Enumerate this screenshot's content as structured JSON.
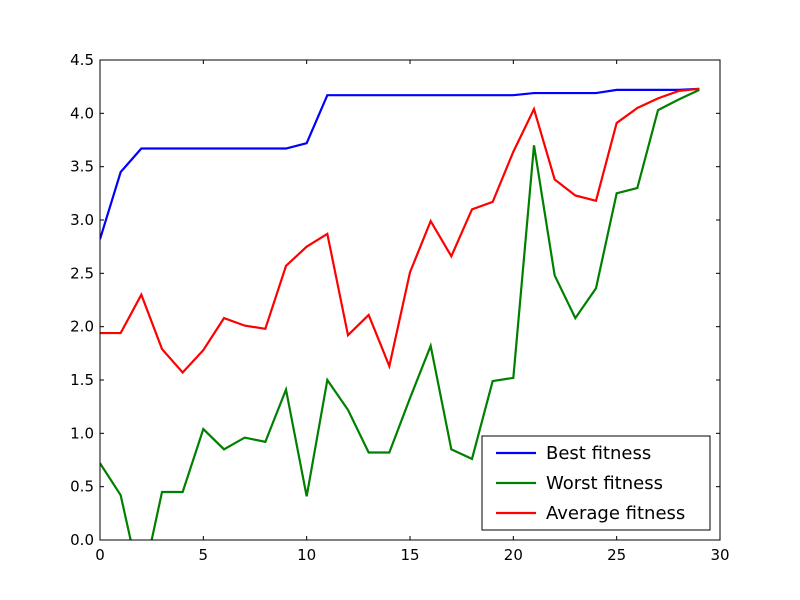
{
  "chart_data": {
    "type": "line",
    "title": "",
    "xlabel": "",
    "ylabel": "",
    "xlim": [
      0,
      30
    ],
    "ylim": [
      0,
      4.5
    ],
    "xticks": [
      0,
      5,
      10,
      15,
      20,
      25,
      30
    ],
    "xtick_labels": [
      "0",
      "5",
      "10",
      "15",
      "20",
      "25",
      "30"
    ],
    "yticks": [
      0,
      0.5,
      1,
      1.5,
      2,
      2.5,
      3,
      3.5,
      4,
      4.5
    ],
    "ytick_labels": [
      "0.0",
      "0.5",
      "1.0",
      "1.5",
      "2.0",
      "2.5",
      "3.0",
      "3.5",
      "4.0",
      "4.5"
    ],
    "grid": false,
    "legend_position": "lower-right",
    "x": [
      0,
      1,
      2,
      3,
      4,
      5,
      6,
      7,
      8,
      9,
      10,
      11,
      12,
      13,
      14,
      15,
      16,
      17,
      18,
      19,
      20,
      21,
      22,
      23,
      24,
      25,
      26,
      27,
      28,
      29
    ],
    "series": [
      {
        "name": "Best fitness",
        "color": "#0000ff",
        "values": [
          2.82,
          3.45,
          3.67,
          3.67,
          3.67,
          3.67,
          3.67,
          3.67,
          3.67,
          3.67,
          3.72,
          4.17,
          4.17,
          4.17,
          4.17,
          4.17,
          4.17,
          4.17,
          4.17,
          4.17,
          4.17,
          4.19,
          4.19,
          4.19,
          4.19,
          4.22,
          4.22,
          4.22,
          4.22,
          4.23
        ]
      },
      {
        "name": "Worst fitness",
        "color": "#008000",
        "values": [
          0.72,
          0.42,
          -0.45,
          0.45,
          0.45,
          1.04,
          0.85,
          0.96,
          0.92,
          1.41,
          0.41,
          1.5,
          1.22,
          0.82,
          0.82,
          1.33,
          1.82,
          0.85,
          0.76,
          1.49,
          1.52,
          3.7,
          2.48,
          2.08,
          2.36,
          3.25,
          3.3,
          4.03,
          4.13,
          4.22
        ]
      },
      {
        "name": "Average fitness",
        "color": "#ff0000",
        "values": [
          1.94,
          1.94,
          2.3,
          1.79,
          1.57,
          1.78,
          2.08,
          2.01,
          1.98,
          2.57,
          2.75,
          2.87,
          1.92,
          2.11,
          1.63,
          2.51,
          2.99,
          2.66,
          3.1,
          3.17,
          3.64,
          4.04,
          3.38,
          3.23,
          3.18,
          3.91,
          4.05,
          4.14,
          4.21,
          4.23
        ]
      }
    ]
  }
}
